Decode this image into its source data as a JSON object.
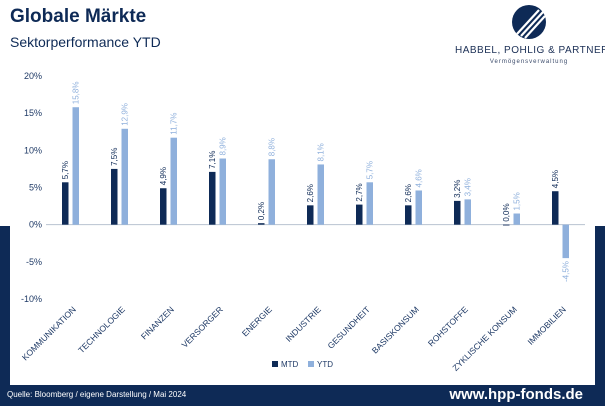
{
  "header": {
    "title": "Globale Märkte",
    "subtitle": "Sektorperformance YTD"
  },
  "logo": {
    "name": "HABBEL, POHLIG & PARTNER",
    "tagline": "Vermögensverwaltung"
  },
  "footer": {
    "source": "Quelle: Bloomberg / eigene Darstellung / Mai 2024",
    "url": "www.hpp-fonds.de"
  },
  "colors": {
    "mtd": "#0e2a56",
    "ytd": "#8fb0dc",
    "brand": "#0e2a56"
  },
  "chart_data": {
    "type": "bar",
    "categories": [
      "KOMMUNIKATION",
      "TECHNOLOGIE",
      "FINANZEN",
      "VERSORGER",
      "ENERGIE",
      "INDUSTRIE",
      "GESUNDHEIT",
      "BASISKONSUM",
      "ROHSTOFFE",
      "ZYKLISCHE KONSUM",
      "IMMOBILIEN"
    ],
    "series": [
      {
        "name": "MTD",
        "values": [
          5.7,
          7.5,
          4.9,
          7.1,
          0.2,
          2.6,
          2.7,
          2.6,
          3.2,
          0.0,
          4.5
        ],
        "labels": [
          "5,7%",
          "7,5%",
          "4,9%",
          "7,1%",
          "0,2%",
          "2,6%",
          "2,7%",
          "2,6%",
          "3,2%",
          "0,0%",
          "4,5%"
        ]
      },
      {
        "name": "YTD",
        "values": [
          15.8,
          12.9,
          11.7,
          8.9,
          8.8,
          8.1,
          5.7,
          4.6,
          3.4,
          1.5,
          -4.5
        ],
        "labels": [
          "15,8%",
          "12,9%",
          "11,7%",
          "8,9%",
          "8,8%",
          "8,1%",
          "5,7%",
          "4,6%",
          "3,4%",
          "1,5%",
          "-4,5%"
        ]
      }
    ],
    "ylim": [
      -10,
      20
    ],
    "yticks": [
      -10,
      -5,
      0,
      5,
      10,
      15,
      20
    ],
    "ytick_labels": [
      "-10%",
      "-5%",
      "0%",
      "5%",
      "10%",
      "15%",
      "20%"
    ],
    "grid": false,
    "legend": "bottom-center"
  }
}
